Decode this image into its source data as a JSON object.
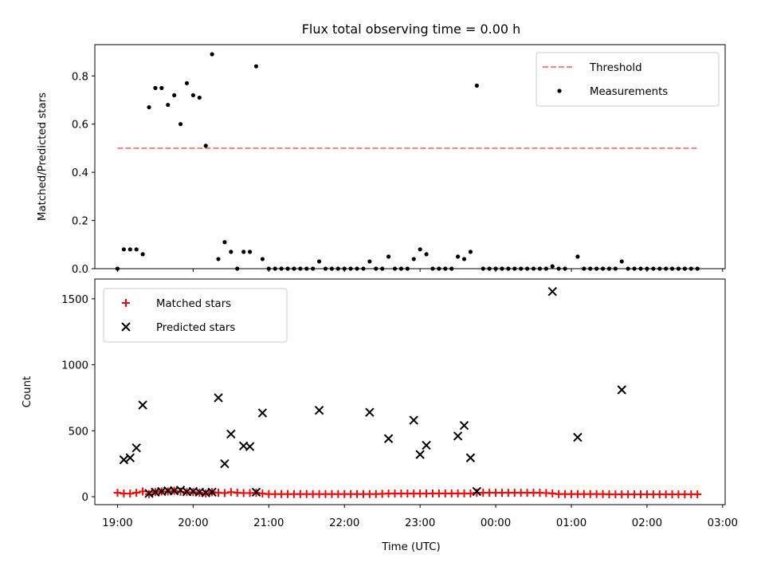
{
  "chart_data": [
    {
      "type": "scatter",
      "title": "Flux total observing time = 0.00 h",
      "ylabel": "Matched/Predicted stars",
      "ylim": [
        0,
        0.93
      ],
      "yticks": [
        "0.0",
        "0.2",
        "0.4",
        "0.6",
        "0.8"
      ],
      "grid": false,
      "legend_position": "top-right",
      "threshold": {
        "name": "Threshold",
        "value": 0.5,
        "x_start": "19:00",
        "x_end": "02:40",
        "color": "#ff7f7f",
        "style": "dashed"
      },
      "series": [
        {
          "name": "Measurements",
          "color": "#000000",
          "marker": "dot",
          "points": [
            {
              "x": "19:00",
              "y": 0.0
            },
            {
              "x": "19:05",
              "y": 0.08
            },
            {
              "x": "19:10",
              "y": 0.08
            },
            {
              "x": "19:15",
              "y": 0.08
            },
            {
              "x": "19:20",
              "y": 0.06
            },
            {
              "x": "19:25",
              "y": 0.67
            },
            {
              "x": "19:30",
              "y": 0.75
            },
            {
              "x": "19:35",
              "y": 0.75
            },
            {
              "x": "19:40",
              "y": 0.68
            },
            {
              "x": "19:45",
              "y": 0.72
            },
            {
              "x": "19:50",
              "y": 0.6
            },
            {
              "x": "19:55",
              "y": 0.77
            },
            {
              "x": "20:00",
              "y": 0.72
            },
            {
              "x": "20:05",
              "y": 0.71
            },
            {
              "x": "20:10",
              "y": 0.51
            },
            {
              "x": "20:15",
              "y": 0.89
            },
            {
              "x": "20:20",
              "y": 0.04
            },
            {
              "x": "20:25",
              "y": 0.11
            },
            {
              "x": "20:30",
              "y": 0.07
            },
            {
              "x": "20:35",
              "y": 0.0
            },
            {
              "x": "20:40",
              "y": 0.07
            },
            {
              "x": "20:45",
              "y": 0.07
            },
            {
              "x": "20:50",
              "y": 0.84
            },
            {
              "x": "20:55",
              "y": 0.04
            },
            {
              "x": "21:00",
              "y": 0.0
            },
            {
              "x": "21:05",
              "y": 0.0
            },
            {
              "x": "21:10",
              "y": 0.0
            },
            {
              "x": "21:15",
              "y": 0.0
            },
            {
              "x": "21:20",
              "y": 0.0
            },
            {
              "x": "21:25",
              "y": 0.0
            },
            {
              "x": "21:30",
              "y": 0.0
            },
            {
              "x": "21:35",
              "y": 0.0
            },
            {
              "x": "21:40",
              "y": 0.03
            },
            {
              "x": "21:45",
              "y": 0.0
            },
            {
              "x": "21:50",
              "y": 0.0
            },
            {
              "x": "21:55",
              "y": 0.0
            },
            {
              "x": "22:00",
              "y": 0.0
            },
            {
              "x": "22:05",
              "y": 0.0
            },
            {
              "x": "22:10",
              "y": 0.0
            },
            {
              "x": "22:15",
              "y": 0.0
            },
            {
              "x": "22:20",
              "y": 0.03
            },
            {
              "x": "22:25",
              "y": 0.0
            },
            {
              "x": "22:30",
              "y": 0.0
            },
            {
              "x": "22:35",
              "y": 0.05
            },
            {
              "x": "22:40",
              "y": 0.0
            },
            {
              "x": "22:45",
              "y": 0.0
            },
            {
              "x": "22:50",
              "y": 0.0
            },
            {
              "x": "22:55",
              "y": 0.04
            },
            {
              "x": "23:00",
              "y": 0.08
            },
            {
              "x": "23:05",
              "y": 0.06
            },
            {
              "x": "23:10",
              "y": 0.0
            },
            {
              "x": "23:15",
              "y": 0.0
            },
            {
              "x": "23:20",
              "y": 0.0
            },
            {
              "x": "23:25",
              "y": 0.0
            },
            {
              "x": "23:30",
              "y": 0.05
            },
            {
              "x": "23:35",
              "y": 0.04
            },
            {
              "x": "23:40",
              "y": 0.07
            },
            {
              "x": "23:45",
              "y": 0.76
            },
            {
              "x": "23:50",
              "y": 0.0
            },
            {
              "x": "23:55",
              "y": 0.0
            },
            {
              "x": "00:00",
              "y": 0.0
            },
            {
              "x": "00:05",
              "y": 0.0
            },
            {
              "x": "00:10",
              "y": 0.0
            },
            {
              "x": "00:15",
              "y": 0.0
            },
            {
              "x": "00:20",
              "y": 0.0
            },
            {
              "x": "00:25",
              "y": 0.0
            },
            {
              "x": "00:30",
              "y": 0.0
            },
            {
              "x": "00:35",
              "y": 0.0
            },
            {
              "x": "00:40",
              "y": 0.0
            },
            {
              "x": "00:45",
              "y": 0.01
            },
            {
              "x": "00:50",
              "y": 0.0
            },
            {
              "x": "00:55",
              "y": 0.0
            },
            {
              "x": "01:05",
              "y": 0.05
            },
            {
              "x": "01:10",
              "y": 0.0
            },
            {
              "x": "01:15",
              "y": 0.0
            },
            {
              "x": "01:20",
              "y": 0.0
            },
            {
              "x": "01:25",
              "y": 0.0
            },
            {
              "x": "01:30",
              "y": 0.0
            },
            {
              "x": "01:35",
              "y": 0.0
            },
            {
              "x": "01:40",
              "y": 0.03
            },
            {
              "x": "01:45",
              "y": 0.0
            },
            {
              "x": "01:50",
              "y": 0.0
            },
            {
              "x": "01:55",
              "y": 0.0
            },
            {
              "x": "02:00",
              "y": 0.0
            },
            {
              "x": "02:05",
              "y": 0.0
            },
            {
              "x": "02:10",
              "y": 0.0
            },
            {
              "x": "02:15",
              "y": 0.0
            },
            {
              "x": "02:20",
              "y": 0.0
            },
            {
              "x": "02:25",
              "y": 0.0
            },
            {
              "x": "02:30",
              "y": 0.0
            },
            {
              "x": "02:35",
              "y": 0.0
            },
            {
              "x": "02:40",
              "y": 0.0
            }
          ]
        }
      ]
    },
    {
      "type": "scatter",
      "xlabel": "Time (UTC)",
      "ylabel": "Count",
      "ylim": [
        -60,
        1650
      ],
      "yticks": [
        "0",
        "500",
        "1000",
        "1500"
      ],
      "xticks": [
        "19:00",
        "20:00",
        "21:00",
        "22:00",
        "23:00",
        "00:00",
        "01:00",
        "02:00",
        "03:00"
      ],
      "xrange": [
        "18:42",
        "03:02"
      ],
      "grid": false,
      "legend_position": "top-left",
      "series": [
        {
          "name": "Matched stars",
          "color": "#ff0000",
          "marker": "plus",
          "points": [
            {
              "x": "19:00",
              "y": 30
            },
            {
              "x": "19:05",
              "y": 24
            },
            {
              "x": "19:10",
              "y": 24
            },
            {
              "x": "19:15",
              "y": 30
            },
            {
              "x": "19:20",
              "y": 40
            },
            {
              "x": "19:25",
              "y": 20
            },
            {
              "x": "19:30",
              "y": 35
            },
            {
              "x": "19:35",
              "y": 40
            },
            {
              "x": "19:40",
              "y": 40
            },
            {
              "x": "19:45",
              "y": 45
            },
            {
              "x": "19:50",
              "y": 38
            },
            {
              "x": "19:55",
              "y": 35
            },
            {
              "x": "20:00",
              "y": 35
            },
            {
              "x": "20:05",
              "y": 30
            },
            {
              "x": "20:10",
              "y": 25
            },
            {
              "x": "20:15",
              "y": 35
            },
            {
              "x": "20:20",
              "y": 30
            },
            {
              "x": "20:25",
              "y": 28
            },
            {
              "x": "20:30",
              "y": 35
            },
            {
              "x": "20:35",
              "y": 30
            },
            {
              "x": "20:40",
              "y": 28
            },
            {
              "x": "20:45",
              "y": 28
            },
            {
              "x": "20:50",
              "y": 30
            },
            {
              "x": "20:55",
              "y": 24
            },
            {
              "x": "21:00",
              "y": 20
            },
            {
              "x": "21:05",
              "y": 20
            },
            {
              "x": "21:10",
              "y": 20
            },
            {
              "x": "21:15",
              "y": 20
            },
            {
              "x": "21:20",
              "y": 20
            },
            {
              "x": "21:25",
              "y": 20
            },
            {
              "x": "21:30",
              "y": 20
            },
            {
              "x": "21:35",
              "y": 20
            },
            {
              "x": "21:40",
              "y": 20
            },
            {
              "x": "21:45",
              "y": 20
            },
            {
              "x": "21:50",
              "y": 20
            },
            {
              "x": "21:55",
              "y": 20
            },
            {
              "x": "22:00",
              "y": 20
            },
            {
              "x": "22:05",
              "y": 20
            },
            {
              "x": "22:10",
              "y": 20
            },
            {
              "x": "22:15",
              "y": 20
            },
            {
              "x": "22:20",
              "y": 20
            },
            {
              "x": "22:25",
              "y": 20
            },
            {
              "x": "22:30",
              "y": 22
            },
            {
              "x": "22:35",
              "y": 24
            },
            {
              "x": "22:40",
              "y": 24
            },
            {
              "x": "22:45",
              "y": 24
            },
            {
              "x": "22:50",
              "y": 24
            },
            {
              "x": "22:55",
              "y": 24
            },
            {
              "x": "23:00",
              "y": 24
            },
            {
              "x": "23:05",
              "y": 24
            },
            {
              "x": "23:10",
              "y": 25
            },
            {
              "x": "23:15",
              "y": 25
            },
            {
              "x": "23:20",
              "y": 25
            },
            {
              "x": "23:25",
              "y": 25
            },
            {
              "x": "23:30",
              "y": 25
            },
            {
              "x": "23:35",
              "y": 25
            },
            {
              "x": "23:40",
              "y": 25
            },
            {
              "x": "23:45",
              "y": 30
            },
            {
              "x": "23:50",
              "y": 30
            },
            {
              "x": "23:55",
              "y": 30
            },
            {
              "x": "00:00",
              "y": 30
            },
            {
              "x": "00:05",
              "y": 30
            },
            {
              "x": "00:10",
              "y": 30
            },
            {
              "x": "00:15",
              "y": 30
            },
            {
              "x": "00:20",
              "y": 30
            },
            {
              "x": "00:25",
              "y": 30
            },
            {
              "x": "00:30",
              "y": 30
            },
            {
              "x": "00:35",
              "y": 30
            },
            {
              "x": "00:40",
              "y": 28
            },
            {
              "x": "00:45",
              "y": 25
            },
            {
              "x": "00:50",
              "y": 20
            },
            {
              "x": "00:55",
              "y": 20
            },
            {
              "x": "01:00",
              "y": 20
            },
            {
              "x": "01:05",
              "y": 20
            },
            {
              "x": "01:10",
              "y": 20
            },
            {
              "x": "01:15",
              "y": 20
            },
            {
              "x": "01:20",
              "y": 20
            },
            {
              "x": "01:25",
              "y": 20
            },
            {
              "x": "01:30",
              "y": 18
            },
            {
              "x": "01:35",
              "y": 18
            },
            {
              "x": "01:40",
              "y": 18
            },
            {
              "x": "01:45",
              "y": 18
            },
            {
              "x": "01:50",
              "y": 18
            },
            {
              "x": "01:55",
              "y": 18
            },
            {
              "x": "02:00",
              "y": 18
            },
            {
              "x": "02:05",
              "y": 18
            },
            {
              "x": "02:10",
              "y": 18
            },
            {
              "x": "02:15",
              "y": 18
            },
            {
              "x": "02:20",
              "y": 18
            },
            {
              "x": "02:25",
              "y": 18
            },
            {
              "x": "02:30",
              "y": 18
            },
            {
              "x": "02:35",
              "y": 18
            },
            {
              "x": "02:40",
              "y": 18
            }
          ]
        },
        {
          "name": "Predicted stars",
          "color": "#000000",
          "marker": "cross",
          "points": [
            {
              "x": "19:05",
              "y": 280
            },
            {
              "x": "19:10",
              "y": 295
            },
            {
              "x": "19:15",
              "y": 370
            },
            {
              "x": "19:20",
              "y": 695
            },
            {
              "x": "19:25",
              "y": 25
            },
            {
              "x": "19:30",
              "y": 35
            },
            {
              "x": "19:35",
              "y": 40
            },
            {
              "x": "19:40",
              "y": 45
            },
            {
              "x": "19:45",
              "y": 45
            },
            {
              "x": "19:50",
              "y": 50
            },
            {
              "x": "19:55",
              "y": 38
            },
            {
              "x": "20:00",
              "y": 40
            },
            {
              "x": "20:05",
              "y": 35
            },
            {
              "x": "20:10",
              "y": 30
            },
            {
              "x": "20:15",
              "y": 35
            },
            {
              "x": "20:20",
              "y": 750
            },
            {
              "x": "20:25",
              "y": 250
            },
            {
              "x": "20:30",
              "y": 475
            },
            {
              "x": "20:40",
              "y": 385
            },
            {
              "x": "20:45",
              "y": 380
            },
            {
              "x": "20:50",
              "y": 35
            },
            {
              "x": "20:55",
              "y": 635
            },
            {
              "x": "21:40",
              "y": 655
            },
            {
              "x": "22:20",
              "y": 640
            },
            {
              "x": "22:35",
              "y": 440
            },
            {
              "x": "22:55",
              "y": 580
            },
            {
              "x": "23:00",
              "y": 320
            },
            {
              "x": "23:05",
              "y": 390
            },
            {
              "x": "23:30",
              "y": 460
            },
            {
              "x": "23:35",
              "y": 540
            },
            {
              "x": "23:40",
              "y": 295
            },
            {
              "x": "23:45",
              "y": 40
            },
            {
              "x": "00:45",
              "y": 1555
            },
            {
              "x": "01:05",
              "y": 450
            },
            {
              "x": "01:40",
              "y": 810
            }
          ]
        }
      ]
    }
  ]
}
